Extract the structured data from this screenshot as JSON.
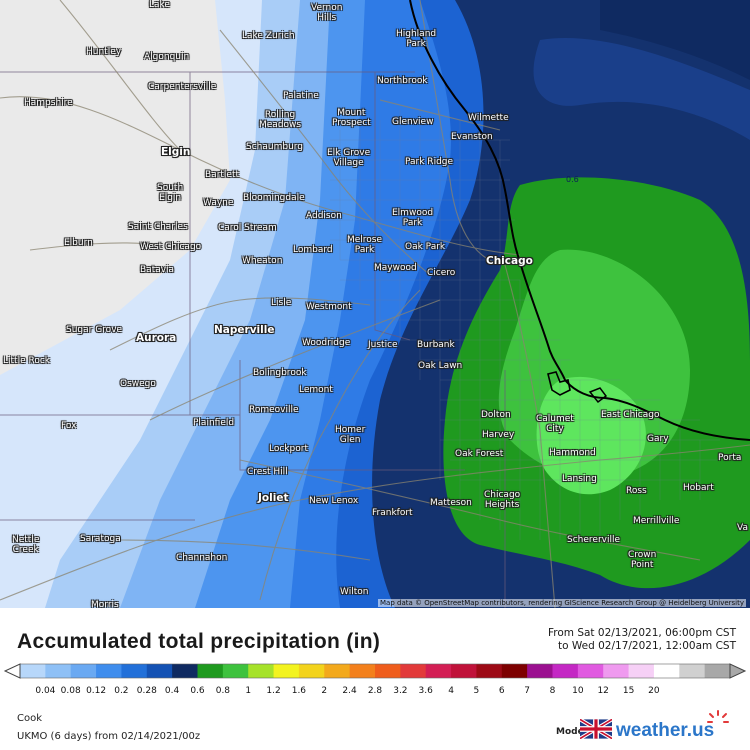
{
  "map": {
    "attribution": "Map data © OpenStreetMap contributors, rendering GIScience Research Group @ Heidelberg University",
    "contour_label": "0.6",
    "cities": [
      {
        "id": "lake",
        "label": "Lake"
      },
      {
        "id": "vernon-hills",
        "label": "Vernon\nHills"
      },
      {
        "id": "highland-park",
        "label": "Highland\nPark"
      },
      {
        "id": "lake-zurich",
        "label": "Lake Zurich"
      },
      {
        "id": "huntley",
        "label": "Huntley"
      },
      {
        "id": "algonquin",
        "label": "Algonquin"
      },
      {
        "id": "carpentersville",
        "label": "Carpentersville"
      },
      {
        "id": "northbrook",
        "label": "Northbrook"
      },
      {
        "id": "wilmette",
        "label": "Wilmette"
      },
      {
        "id": "hampshire",
        "label": "Hampshire"
      },
      {
        "id": "palatine",
        "label": "Palatine"
      },
      {
        "id": "rolling-meadows",
        "label": "Rolling\nMeadows"
      },
      {
        "id": "mount-prospect",
        "label": "Mount\nProspect"
      },
      {
        "id": "glenview",
        "label": "Glenview"
      },
      {
        "id": "evanston",
        "label": "Evanston"
      },
      {
        "id": "elgin",
        "label": "Elgin"
      },
      {
        "id": "schaumburg",
        "label": "Schaumburg"
      },
      {
        "id": "elk-grove-village",
        "label": "Elk Grove\nVillage"
      },
      {
        "id": "park-ridge",
        "label": "Park Ridge"
      },
      {
        "id": "bartlett",
        "label": "Bartlett"
      },
      {
        "id": "south-elgin",
        "label": "South\nElgin"
      },
      {
        "id": "bloomingdale",
        "label": "Bloomingdale"
      },
      {
        "id": "wayne",
        "label": "Wayne"
      },
      {
        "id": "addison",
        "label": "Addison"
      },
      {
        "id": "elmwood-park",
        "label": "Elmwood\nPark"
      },
      {
        "id": "saint-charles",
        "label": "Saint Charles"
      },
      {
        "id": "carol-stream",
        "label": "Carol Stream"
      },
      {
        "id": "west-chicago",
        "label": "West Chicago"
      },
      {
        "id": "elburn",
        "label": "Elburn"
      },
      {
        "id": "melrose-park",
        "label": "Melrose\nPark"
      },
      {
        "id": "oak-park",
        "label": "Oak Park"
      },
      {
        "id": "lombard",
        "label": "Lombard"
      },
      {
        "id": "chicago",
        "label": "Chicago"
      },
      {
        "id": "batavia",
        "label": "Batavia"
      },
      {
        "id": "wheaton",
        "label": "Wheaton"
      },
      {
        "id": "maywood",
        "label": "Maywood"
      },
      {
        "id": "cicero",
        "label": "Cicero"
      },
      {
        "id": "lisle",
        "label": "Lisle"
      },
      {
        "id": "westmont",
        "label": "Westmont"
      },
      {
        "id": "sugar-grove",
        "label": "Sugar Grove"
      },
      {
        "id": "aurora",
        "label": "Aurora"
      },
      {
        "id": "naperville",
        "label": "Naperville"
      },
      {
        "id": "woodridge",
        "label": "Woodridge"
      },
      {
        "id": "justice",
        "label": "Justice"
      },
      {
        "id": "burbank",
        "label": "Burbank"
      },
      {
        "id": "little-rock",
        "label": "Little Rock"
      },
      {
        "id": "bolingbrook",
        "label": "Bolingbrook"
      },
      {
        "id": "oak-lawn",
        "label": "Oak Lawn"
      },
      {
        "id": "oswego",
        "label": "Oswego"
      },
      {
        "id": "lemont",
        "label": "Lemont"
      },
      {
        "id": "romeoville",
        "label": "Romeoville"
      },
      {
        "id": "dolton",
        "label": "Dolton"
      },
      {
        "id": "east-chicago",
        "label": "East Chicago"
      },
      {
        "id": "plainfield",
        "label": "Plainfield"
      },
      {
        "id": "calumet-city",
        "label": "Calumet\nCity"
      },
      {
        "id": "fox",
        "label": "Fox"
      },
      {
        "id": "homer-glen",
        "label": "Homer\nGlen"
      },
      {
        "id": "harvey",
        "label": "Harvey"
      },
      {
        "id": "gary",
        "label": "Gary"
      },
      {
        "id": "lockport",
        "label": "Lockport"
      },
      {
        "id": "oak-forest",
        "label": "Oak Forest"
      },
      {
        "id": "hammond",
        "label": "Hammond"
      },
      {
        "id": "portage",
        "label": "Porta"
      },
      {
        "id": "crest-hill",
        "label": "Crest Hill"
      },
      {
        "id": "lansing",
        "label": "Lansing"
      },
      {
        "id": "ross",
        "label": "Ross"
      },
      {
        "id": "hobart",
        "label": "Hobart"
      },
      {
        "id": "joliet",
        "label": "Joliet"
      },
      {
        "id": "new-lenox",
        "label": "New Lenox"
      },
      {
        "id": "matteson",
        "label": "Matteson"
      },
      {
        "id": "chicago-heights",
        "label": "Chicago\nHeights"
      },
      {
        "id": "frankfort",
        "label": "Frankfort"
      },
      {
        "id": "merrillville",
        "label": "Merrillville"
      },
      {
        "id": "valparaiso",
        "label": "Va"
      },
      {
        "id": "nettle-creek",
        "label": "Nettle\nCreek"
      },
      {
        "id": "saratoga",
        "label": "Saratoga"
      },
      {
        "id": "schererville",
        "label": "Schererville"
      },
      {
        "id": "channahon",
        "label": "Channahon"
      },
      {
        "id": "crown-point",
        "label": "Crown\nPoint"
      },
      {
        "id": "wilton",
        "label": "Wilton"
      },
      {
        "id": "morris",
        "label": "Morris"
      }
    ],
    "colors": {
      "light_gray": "#eaeaea",
      "pale_blue": "#d6e6fb",
      "light_blue": "#a9cdf7",
      "blue2": "#7fb4f4",
      "blue3": "#4d95ef",
      "blue4": "#2f7be6",
      "blue5": "#1c63d2",
      "navy": "#14326e",
      "dark_navy": "#0f2a61",
      "green_dark": "#1f9a1f",
      "green_mid": "#3ec23e",
      "green_light": "#5ee65e"
    }
  },
  "header": {
    "title": "Accumulated total precipitation (in)",
    "period_from": "From Sat 02/13/2021, 06:00pm CST",
    "period_to": "to Wed 02/17/2021, 12:00am CST"
  },
  "legend": {
    "ticks": [
      "0.04",
      "0.08",
      "0.12",
      "0.2",
      "0.28",
      "0.4",
      "0.6",
      "0.8",
      "1",
      "1.2",
      "1.6",
      "2",
      "2.4",
      "2.8",
      "3.2",
      "3.6",
      "4",
      "5",
      "6",
      "7",
      "8",
      "10",
      "12",
      "15",
      "20"
    ],
    "colors": [
      "#b7d7fa",
      "#8ec0f6",
      "#6aa9f2",
      "#3f8ded",
      "#2270d9",
      "#1452b4",
      "#0f2a61",
      "#1f9a1f",
      "#3ec23e",
      "#a6e22a",
      "#f3f31f",
      "#f3d31c",
      "#f3a91c",
      "#f3801c",
      "#ef5d1c",
      "#e23a3a",
      "#d31e54",
      "#c0123a",
      "#9d0a16",
      "#7d0000",
      "#9b1090",
      "#c428c4",
      "#e05ae0",
      "#ef9aef",
      "#f6d0f6",
      "#ffffff",
      "#d0d0d0",
      "#a8a8a8"
    ]
  },
  "footer": {
    "location": "Cook",
    "run": "UKMO (6 days) from 02/14/2021/00z",
    "model_label": "Model:",
    "brand": "weather.us"
  }
}
